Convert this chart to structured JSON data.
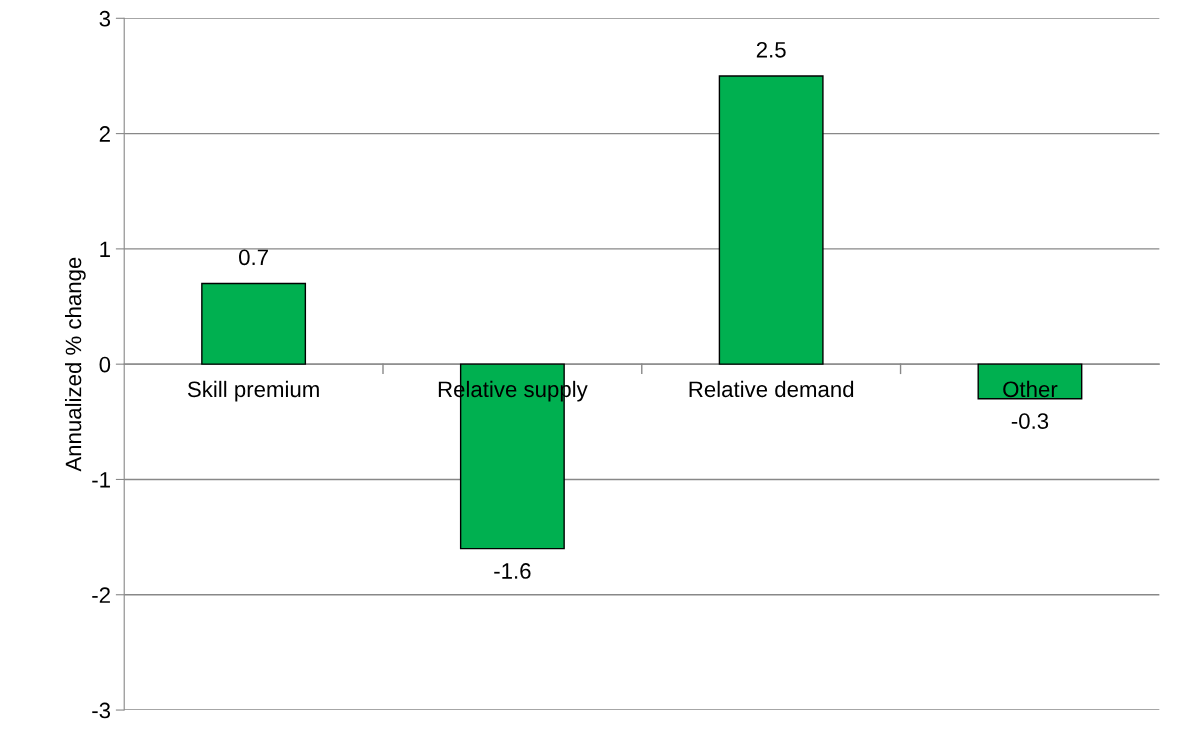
{
  "chart_data": {
    "type": "bar",
    "ylabel": "Annualized % change",
    "categories": [
      "Skill premium",
      "Relative supply",
      "Relative demand",
      "Other"
    ],
    "values": [
      0.7,
      -1.6,
      2.5,
      -0.3
    ],
    "color": "#00b050",
    "ylim": [
      -3,
      3
    ],
    "yticks": [
      -3,
      -2,
      -1,
      0,
      1,
      2,
      3
    ],
    "grid": "y",
    "data_labels": true
  }
}
